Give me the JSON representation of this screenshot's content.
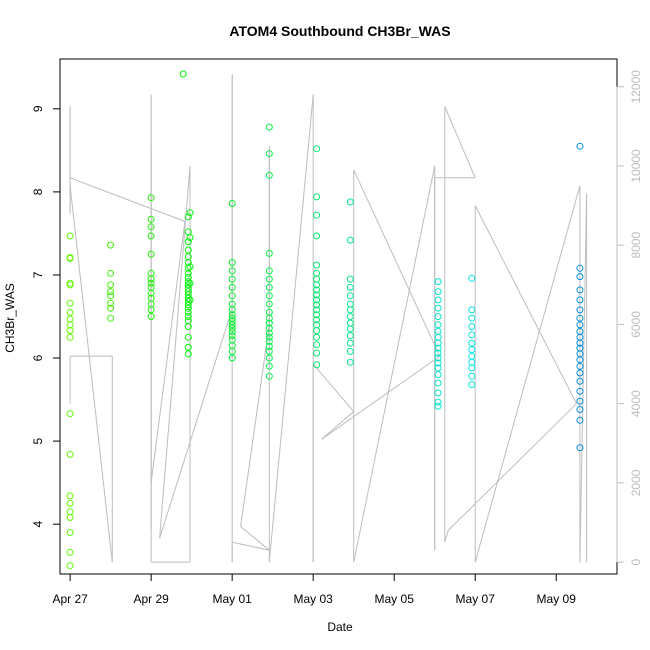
{
  "chart_data": {
    "type": "scatter",
    "title": "ATOM4 Southbound CH3Br_WAS",
    "xlabel": "Date",
    "ylabel": "CH3Br_WAS",
    "x_range": [
      "2018-04-26T18:00",
      "2018-05-10T12:00"
    ],
    "y_range": [
      3.4,
      9.6
    ],
    "y2_range": [
      -300,
      12700
    ],
    "x_ticks": [
      {
        "date": "2018-04-27T00:00",
        "label": "Apr 27"
      },
      {
        "date": "2018-04-29T00:00",
        "label": "Apr 29"
      },
      {
        "date": "2018-05-01T00:00",
        "label": "May 01"
      },
      {
        "date": "2018-05-03T00:00",
        "label": "May 03"
      },
      {
        "date": "2018-05-05T00:00",
        "label": "May 05"
      },
      {
        "date": "2018-05-07T00:00",
        "label": "May 07"
      },
      {
        "date": "2018-05-09T00:00",
        "label": "May 09"
      }
    ],
    "y_ticks": [
      4,
      5,
      6,
      7,
      8,
      9
    ],
    "y2_ticks": [
      0,
      2000,
      4000,
      6000,
      8000,
      10000,
      12000
    ],
    "colors": {
      "axis": "#000000",
      "secondary_axis": "#bdbdbd",
      "altitude_trace": "#bdbdbd",
      "background": "#ffffff"
    },
    "series": [
      {
        "kind": "circles",
        "y_axis": "left",
        "color_scale": "green-to-blue by date",
        "points": [
          [
            "2018-04-27T00:00",
            7.47
          ],
          [
            "2018-04-27T00:00",
            7.21
          ],
          [
            "2018-04-27T00:00",
            7.2
          ],
          [
            "2018-04-27T00:00",
            6.9
          ],
          [
            "2018-04-27T00:00",
            6.88
          ],
          [
            "2018-04-27T00:00",
            6.66
          ],
          [
            "2018-04-27T00:00",
            6.55
          ],
          [
            "2018-04-27T00:00",
            6.47
          ],
          [
            "2018-04-27T00:00",
            6.4
          ],
          [
            "2018-04-27T00:00",
            6.33
          ],
          [
            "2018-04-27T00:00",
            6.25
          ],
          [
            "2018-04-27T00:00",
            5.33
          ],
          [
            "2018-04-27T00:00",
            4.84
          ],
          [
            "2018-04-27T00:00",
            4.34
          ],
          [
            "2018-04-27T00:00",
            4.25
          ],
          [
            "2018-04-27T00:00",
            4.15
          ],
          [
            "2018-04-27T00:00",
            4.08
          ],
          [
            "2018-04-27T00:00",
            3.9
          ],
          [
            "2018-04-27T00:00",
            3.66
          ],
          [
            "2018-04-27T00:00",
            3.5
          ],
          [
            "2018-04-28T00:00",
            7.36
          ],
          [
            "2018-04-28T00:00",
            7.02
          ],
          [
            "2018-04-28T00:00",
            6.88
          ],
          [
            "2018-04-28T00:00",
            6.8
          ],
          [
            "2018-04-28T00:00",
            6.75
          ],
          [
            "2018-04-28T00:00",
            6.66
          ],
          [
            "2018-04-28T00:00",
            6.6
          ],
          [
            "2018-04-28T00:00",
            6.48
          ],
          [
            "2018-04-29T00:00",
            7.93
          ],
          [
            "2018-04-29T00:00",
            7.67
          ],
          [
            "2018-04-29T00:00",
            7.58
          ],
          [
            "2018-04-29T00:00",
            7.47
          ],
          [
            "2018-04-29T00:00",
            7.25
          ],
          [
            "2018-04-29T00:00",
            7.02
          ],
          [
            "2018-04-29T00:00",
            6.95
          ],
          [
            "2018-04-29T00:00",
            6.9
          ],
          [
            "2018-04-29T00:00",
            6.85
          ],
          [
            "2018-04-29T00:00",
            6.78
          ],
          [
            "2018-04-29T00:00",
            6.72
          ],
          [
            "2018-04-29T00:00",
            6.65
          ],
          [
            "2018-04-29T00:00",
            6.58
          ],
          [
            "2018-04-29T00:00",
            6.5
          ],
          [
            "2018-04-29T19:00",
            9.42
          ],
          [
            "2018-04-29T22:00",
            7.7
          ],
          [
            "2018-04-29T22:00",
            7.52
          ],
          [
            "2018-04-29T22:00",
            7.4
          ],
          [
            "2018-04-29T22:00",
            7.3
          ],
          [
            "2018-04-29T22:00",
            7.22
          ],
          [
            "2018-04-29T22:00",
            7.15
          ],
          [
            "2018-04-29T22:00",
            7.08
          ],
          [
            "2018-04-29T22:00",
            7.02
          ],
          [
            "2018-04-29T22:00",
            6.97
          ],
          [
            "2018-04-29T22:00",
            6.92
          ],
          [
            "2018-04-29T22:00",
            6.88
          ],
          [
            "2018-04-29T22:00",
            6.84
          ],
          [
            "2018-04-29T22:00",
            6.8
          ],
          [
            "2018-04-29T22:00",
            6.76
          ],
          [
            "2018-04-29T22:00",
            6.72
          ],
          [
            "2018-04-29T22:00",
            6.68
          ],
          [
            "2018-04-29T22:00",
            6.64
          ],
          [
            "2018-04-29T22:00",
            6.6
          ],
          [
            "2018-04-29T22:00",
            6.55
          ],
          [
            "2018-04-29T22:00",
            6.5
          ],
          [
            "2018-04-29T22:00",
            6.45
          ],
          [
            "2018-04-29T22:00",
            6.38
          ],
          [
            "2018-04-29T22:00",
            6.25
          ],
          [
            "2018-04-29T22:00",
            6.13
          ],
          [
            "2018-04-29T22:00",
            6.05
          ],
          [
            "2018-04-29T23:00",
            7.75
          ],
          [
            "2018-04-29T23:00",
            7.45
          ],
          [
            "2018-04-29T23:00",
            7.1
          ],
          [
            "2018-04-29T23:00",
            6.9
          ],
          [
            "2018-04-29T23:00",
            6.7
          ],
          [
            "2018-05-01T00:00",
            7.86
          ],
          [
            "2018-05-01T00:00",
            7.15
          ],
          [
            "2018-05-01T00:00",
            7.05
          ],
          [
            "2018-05-01T00:00",
            6.95
          ],
          [
            "2018-05-01T00:00",
            6.85
          ],
          [
            "2018-05-01T00:00",
            6.75
          ],
          [
            "2018-05-01T00:00",
            6.65
          ],
          [
            "2018-05-01T00:00",
            6.58
          ],
          [
            "2018-05-01T00:00",
            6.52
          ],
          [
            "2018-05-01T00:00",
            6.48
          ],
          [
            "2018-05-01T00:00",
            6.44
          ],
          [
            "2018-05-01T00:00",
            6.4
          ],
          [
            "2018-05-01T00:00",
            6.36
          ],
          [
            "2018-05-01T00:00",
            6.32
          ],
          [
            "2018-05-01T00:00",
            6.27
          ],
          [
            "2018-05-01T00:00",
            6.22
          ],
          [
            "2018-05-01T00:00",
            6.15
          ],
          [
            "2018-05-01T00:00",
            6.08
          ],
          [
            "2018-05-01T00:00",
            6.0
          ],
          [
            "2018-05-01T22:00",
            8.78
          ],
          [
            "2018-05-01T22:00",
            8.46
          ],
          [
            "2018-05-01T22:00",
            8.2
          ],
          [
            "2018-05-01T22:00",
            7.26
          ],
          [
            "2018-05-01T22:00",
            7.05
          ],
          [
            "2018-05-01T22:00",
            6.95
          ],
          [
            "2018-05-01T22:00",
            6.85
          ],
          [
            "2018-05-01T22:00",
            6.75
          ],
          [
            "2018-05-01T22:00",
            6.65
          ],
          [
            "2018-05-01T22:00",
            6.55
          ],
          [
            "2018-05-01T22:00",
            6.48
          ],
          [
            "2018-05-01T22:00",
            6.42
          ],
          [
            "2018-05-01T22:00",
            6.36
          ],
          [
            "2018-05-01T22:00",
            6.3
          ],
          [
            "2018-05-01T22:00",
            6.25
          ],
          [
            "2018-05-01T22:00",
            6.2
          ],
          [
            "2018-05-01T22:00",
            6.14
          ],
          [
            "2018-05-01T22:00",
            6.08
          ],
          [
            "2018-05-01T22:00",
            6.0
          ],
          [
            "2018-05-01T22:00",
            5.9
          ],
          [
            "2018-05-01T22:00",
            5.78
          ],
          [
            "2018-05-03T02:00",
            8.52
          ],
          [
            "2018-05-03T02:00",
            7.94
          ],
          [
            "2018-05-03T02:00",
            7.72
          ],
          [
            "2018-05-03T02:00",
            7.47
          ],
          [
            "2018-05-03T02:00",
            7.12
          ],
          [
            "2018-05-03T02:00",
            7.02
          ],
          [
            "2018-05-03T02:00",
            6.95
          ],
          [
            "2018-05-03T02:00",
            6.88
          ],
          [
            "2018-05-03T02:00",
            6.82
          ],
          [
            "2018-05-03T02:00",
            6.76
          ],
          [
            "2018-05-03T02:00",
            6.7
          ],
          [
            "2018-05-03T02:00",
            6.64
          ],
          [
            "2018-05-03T02:00",
            6.58
          ],
          [
            "2018-05-03T02:00",
            6.52
          ],
          [
            "2018-05-03T02:00",
            6.46
          ],
          [
            "2018-05-03T02:00",
            6.4
          ],
          [
            "2018-05-03T02:00",
            6.33
          ],
          [
            "2018-05-03T02:00",
            6.25
          ],
          [
            "2018-05-03T02:00",
            6.16
          ],
          [
            "2018-05-03T02:00",
            6.06
          ],
          [
            "2018-05-03T02:00",
            5.92
          ],
          [
            "2018-05-03T22:00",
            7.88
          ],
          [
            "2018-05-03T22:00",
            7.42
          ],
          [
            "2018-05-03T22:00",
            6.95
          ],
          [
            "2018-05-03T22:00",
            6.85
          ],
          [
            "2018-05-03T22:00",
            6.75
          ],
          [
            "2018-05-03T22:00",
            6.65
          ],
          [
            "2018-05-03T22:00",
            6.58
          ],
          [
            "2018-05-03T22:00",
            6.5
          ],
          [
            "2018-05-03T22:00",
            6.42
          ],
          [
            "2018-05-03T22:00",
            6.35
          ],
          [
            "2018-05-03T22:00",
            6.27
          ],
          [
            "2018-05-03T22:00",
            6.18
          ],
          [
            "2018-05-03T22:00",
            6.08
          ],
          [
            "2018-05-03T22:00",
            5.95
          ],
          [
            "2018-05-06T02:00",
            6.92
          ],
          [
            "2018-05-06T02:00",
            6.8
          ],
          [
            "2018-05-06T02:00",
            6.7
          ],
          [
            "2018-05-06T02:00",
            6.6
          ],
          [
            "2018-05-06T02:00",
            6.5
          ],
          [
            "2018-05-06T02:00",
            6.4
          ],
          [
            "2018-05-06T02:00",
            6.32
          ],
          [
            "2018-05-06T02:00",
            6.25
          ],
          [
            "2018-05-06T02:00",
            6.18
          ],
          [
            "2018-05-06T02:00",
            6.12
          ],
          [
            "2018-05-06T02:00",
            6.06
          ],
          [
            "2018-05-06T02:00",
            6.0
          ],
          [
            "2018-05-06T02:00",
            5.94
          ],
          [
            "2018-05-06T02:00",
            5.88
          ],
          [
            "2018-05-06T02:00",
            5.8
          ],
          [
            "2018-05-06T02:00",
            5.7
          ],
          [
            "2018-05-06T02:00",
            5.58
          ],
          [
            "2018-05-06T02:00",
            5.47
          ],
          [
            "2018-05-06T02:00",
            5.42
          ],
          [
            "2018-05-06T22:00",
            6.96
          ],
          [
            "2018-05-06T22:00",
            6.58
          ],
          [
            "2018-05-06T22:00",
            6.48
          ],
          [
            "2018-05-06T22:00",
            6.38
          ],
          [
            "2018-05-06T22:00",
            6.28
          ],
          [
            "2018-05-06T22:00",
            6.18
          ],
          [
            "2018-05-06T22:00",
            6.1
          ],
          [
            "2018-05-06T22:00",
            6.02
          ],
          [
            "2018-05-06T22:00",
            5.95
          ],
          [
            "2018-05-06T22:00",
            5.88
          ],
          [
            "2018-05-06T22:00",
            5.78
          ],
          [
            "2018-05-06T22:00",
            5.68
          ],
          [
            "2018-05-09T14:00",
            8.55
          ],
          [
            "2018-05-09T14:00",
            7.08
          ],
          [
            "2018-05-09T14:00",
            6.98
          ],
          [
            "2018-05-09T14:00",
            6.82
          ],
          [
            "2018-05-09T14:00",
            6.7
          ],
          [
            "2018-05-09T14:00",
            6.58
          ],
          [
            "2018-05-09T14:00",
            6.48
          ],
          [
            "2018-05-09T14:00",
            6.4
          ],
          [
            "2018-05-09T14:00",
            6.32
          ],
          [
            "2018-05-09T14:00",
            6.25
          ],
          [
            "2018-05-09T14:00",
            6.18
          ],
          [
            "2018-05-09T14:00",
            6.12
          ],
          [
            "2018-05-09T14:00",
            6.05
          ],
          [
            "2018-05-09T14:00",
            5.98
          ],
          [
            "2018-05-09T14:00",
            5.9
          ],
          [
            "2018-05-09T14:00",
            5.82
          ],
          [
            "2018-05-09T14:00",
            5.72
          ],
          [
            "2018-05-09T14:00",
            5.6
          ],
          [
            "2018-05-09T14:00",
            5.48
          ],
          [
            "2018-05-09T14:00",
            5.38
          ],
          [
            "2018-05-09T14:00",
            5.25
          ],
          [
            "2018-05-09T14:00",
            4.92
          ]
        ]
      },
      {
        "kind": "line",
        "y_axis": "right",
        "color": "#bdbdbd",
        "points": [
          [
            "2018-04-27T00:00",
            4000
          ],
          [
            "2018-04-27T00:00",
            5200
          ],
          [
            "2018-04-28T01:00",
            5200
          ],
          [
            "2018-04-28T01:00",
            0
          ],
          [
            "2018-04-27T00:00",
            9500
          ],
          [
            "2018-04-27T00:00",
            11500
          ],
          [
            "2018-04-27T00:00",
            8800
          ],
          [
            "2018-04-27T00:00",
            9700
          ],
          [
            "2018-04-29T20:00",
            8600
          ],
          [
            "2018-04-29T00:00",
            2000
          ],
          [
            "2018-04-29T00:00",
            11800
          ],
          [
            "2018-04-29T00:00",
            800
          ],
          [
            "2018-04-29T00:00",
            10500
          ],
          [
            "2018-04-29T00:00",
            0
          ],
          [
            "2018-04-29T23:00",
            0
          ],
          [
            "2018-04-29T23:00",
            10000
          ],
          [
            "2018-04-29T05:00",
            600
          ],
          [
            "2018-05-01T00:00",
            6400
          ],
          [
            "2018-05-01T00:00",
            12300
          ],
          [
            "2018-05-01T00:00",
            0
          ],
          [
            "2018-05-01T00:00",
            500
          ],
          [
            "2018-05-01T22:00",
            300
          ],
          [
            "2018-05-01T05:00",
            900
          ],
          [
            "2018-05-01T22:00",
            6000
          ],
          [
            "2018-05-01T22:00",
            10500
          ],
          [
            "2018-05-01T22:00",
            0
          ],
          [
            "2018-05-03T00:00",
            11800
          ],
          [
            "2018-05-03T00:00",
            0
          ],
          [
            "2018-05-03T00:00",
            5000
          ],
          [
            "2018-05-04T00:00",
            3800
          ],
          [
            "2018-05-03T05:00",
            3100
          ],
          [
            "2018-05-06T03:00",
            5200
          ],
          [
            "2018-05-04T00:00",
            9900
          ],
          [
            "2018-05-04T00:00",
            0
          ],
          [
            "2018-05-06T00:00",
            10000
          ],
          [
            "2018-05-06T00:00",
            300
          ],
          [
            "2018-05-06T00:00",
            9700
          ],
          [
            "2018-05-07T00:00",
            9700
          ],
          [
            "2018-05-06T06:00",
            11500
          ],
          [
            "2018-05-06T06:00",
            500
          ],
          [
            "2018-05-06T08:00",
            800
          ],
          [
            "2018-05-09T12:00",
            4000
          ],
          [
            "2018-05-07T00:00",
            9000
          ],
          [
            "2018-05-07T00:00",
            0
          ],
          [
            "2018-05-09T14:00",
            9500
          ],
          [
            "2018-05-09T14:00",
            0
          ],
          [
            "2018-05-09T18:00",
            9300
          ],
          [
            "2018-05-09T18:00",
            0
          ]
        ]
      }
    ]
  }
}
